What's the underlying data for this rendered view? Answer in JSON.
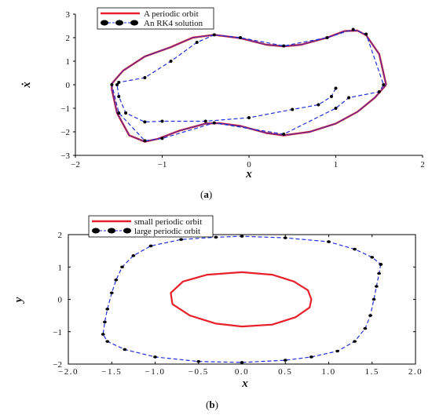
{
  "figure": {
    "caption_a": "(a)",
    "caption_a_letter": "a",
    "caption_b": "(b)",
    "caption_b_letter": "b"
  },
  "colors": {
    "red": "#e8202a",
    "blue": "#1f2fd8",
    "purple": "#5a2d9a",
    "black": "#000000"
  },
  "chart_data": [
    {
      "panel": "a",
      "type": "line",
      "xlabel": "x",
      "ylabel": "ẋ",
      "xlim": [
        -2,
        2
      ],
      "ylim": [
        -3,
        3
      ],
      "xticks": [
        "−2",
        "−1",
        "0",
        "1",
        "2"
      ],
      "yticks": [
        "3",
        "2",
        "1",
        "0",
        "−1",
        "−2",
        "−3"
      ],
      "grid": false,
      "legend_position": "top-left",
      "series": [
        {
          "name": "A periodic orbit",
          "style": "solid red line",
          "points": [
            [
              1.58,
              0.0
            ],
            [
              1.5,
              1.3
            ],
            [
              1.35,
              2.1
            ],
            [
              1.25,
              2.3
            ],
            [
              1.1,
              2.28
            ],
            [
              0.9,
              2.0
            ],
            [
              0.6,
              1.7
            ],
            [
              0.4,
              1.63
            ],
            [
              0.2,
              1.7
            ],
            [
              -0.1,
              1.98
            ],
            [
              -0.4,
              2.12
            ],
            [
              -0.65,
              2.0
            ],
            [
              -0.9,
              1.6
            ],
            [
              -1.2,
              1.2
            ],
            [
              -1.45,
              0.6
            ],
            [
              -1.58,
              0.05
            ],
            [
              -1.58,
              -0.2
            ],
            [
              -1.52,
              -1.2
            ],
            [
              -1.38,
              -2.15
            ],
            [
              -1.2,
              -2.42
            ],
            [
              -1.05,
              -2.3
            ],
            [
              -0.8,
              -1.95
            ],
            [
              -0.5,
              -1.65
            ],
            [
              -0.35,
              -1.63
            ],
            [
              -0.1,
              -1.75
            ],
            [
              0.2,
              -2.05
            ],
            [
              0.4,
              -2.15
            ],
            [
              0.7,
              -2.0
            ],
            [
              1.0,
              -1.65
            ],
            [
              1.25,
              -1.15
            ],
            [
              1.45,
              -0.55
            ],
            [
              1.58,
              0.0
            ]
          ]
        },
        {
          "name": "An RK4 solution",
          "style": "black filled markers on blue dashed line",
          "points": [
            [
              1.0,
              -0.15
            ],
            [
              0.95,
              -0.5
            ],
            [
              0.8,
              -0.85
            ],
            [
              0.5,
              -1.05
            ],
            [
              0.0,
              -1.4
            ],
            [
              -0.5,
              -1.55
            ],
            [
              -1.0,
              -1.55
            ],
            [
              -1.2,
              -1.58
            ],
            [
              -1.42,
              -1.2
            ],
            [
              -1.5,
              -0.5
            ],
            [
              -1.52,
              0.0
            ],
            [
              -1.5,
              0.1
            ],
            [
              -1.2,
              0.3
            ],
            [
              -0.9,
              1.0
            ],
            [
              -0.6,
              1.8
            ],
            [
              -0.4,
              2.12
            ],
            [
              -0.1,
              2.0
            ],
            [
              0.4,
              1.65
            ],
            [
              0.9,
              2.0
            ],
            [
              1.2,
              2.35
            ],
            [
              1.35,
              2.15
            ],
            [
              1.55,
              0.0
            ],
            [
              1.5,
              -0.3
            ],
            [
              1.15,
              -0.55
            ],
            [
              1.0,
              -1.0
            ],
            [
              0.4,
              -2.1
            ],
            [
              -0.4,
              -1.62
            ],
            [
              -1.0,
              -2.28
            ],
            [
              -1.2,
              -2.38
            ],
            [
              -1.5,
              -1.2
            ],
            [
              -1.58,
              0.0
            ]
          ]
        }
      ]
    },
    {
      "panel": "b",
      "type": "line",
      "xlabel": "x",
      "ylabel": "y",
      "xlim": [
        -2,
        2
      ],
      "ylim": [
        -2,
        2
      ],
      "xticks": [
        "−2.0",
        "−1.5",
        "−1.0",
        "−0.5",
        "0.0",
        "0.5",
        "1.0",
        "1.5",
        "2.0"
      ],
      "yticks": [
        "2",
        "1",
        "0",
        "−1",
        "−2"
      ],
      "grid": false,
      "legend_position": "top-left",
      "series": [
        {
          "name": "small periodic orbit",
          "style": "solid red closed curve",
          "points": [
            [
              0.8,
              0.0
            ],
            [
              0.76,
              0.28
            ],
            [
              0.6,
              0.55
            ],
            [
              0.35,
              0.76
            ],
            [
              0.0,
              0.84
            ],
            [
              -0.4,
              0.76
            ],
            [
              -0.68,
              0.55
            ],
            [
              -0.82,
              0.2
            ],
            [
              -0.8,
              -0.15
            ],
            [
              -0.6,
              -0.5
            ],
            [
              -0.3,
              -0.75
            ],
            [
              0.0,
              -0.84
            ],
            [
              0.35,
              -0.78
            ],
            [
              0.62,
              -0.55
            ],
            [
              0.78,
              -0.25
            ],
            [
              0.8,
              0.0
            ]
          ]
        },
        {
          "name": "large periodic orbit",
          "style": "black markers on blue dashed closed curve",
          "points": [
            [
              1.6,
              1.08
            ],
            [
              1.58,
              0.8
            ],
            [
              1.55,
              0.4
            ],
            [
              1.52,
              0.0
            ],
            [
              1.48,
              -0.5
            ],
            [
              1.42,
              -0.9
            ],
            [
              1.3,
              -1.3
            ],
            [
              1.1,
              -1.6
            ],
            [
              0.8,
              -1.78
            ],
            [
              0.5,
              -1.88
            ],
            [
              0.0,
              -1.95
            ],
            [
              -0.5,
              -1.92
            ],
            [
              -1.0,
              -1.78
            ],
            [
              -1.35,
              -1.55
            ],
            [
              -1.55,
              -1.3
            ],
            [
              -1.6,
              -1.08
            ],
            [
              -1.58,
              -0.7
            ],
            [
              -1.55,
              -0.3
            ],
            [
              -1.5,
              0.2
            ],
            [
              -1.45,
              0.6
            ],
            [
              -1.38,
              1.0
            ],
            [
              -1.25,
              1.35
            ],
            [
              -1.05,
              1.65
            ],
            [
              -0.7,
              1.85
            ],
            [
              -0.3,
              1.92
            ],
            [
              0.0,
              1.95
            ],
            [
              0.5,
              1.9
            ],
            [
              1.0,
              1.78
            ],
            [
              1.3,
              1.55
            ],
            [
              1.5,
              1.3
            ],
            [
              1.6,
              1.08
            ]
          ]
        }
      ]
    }
  ]
}
